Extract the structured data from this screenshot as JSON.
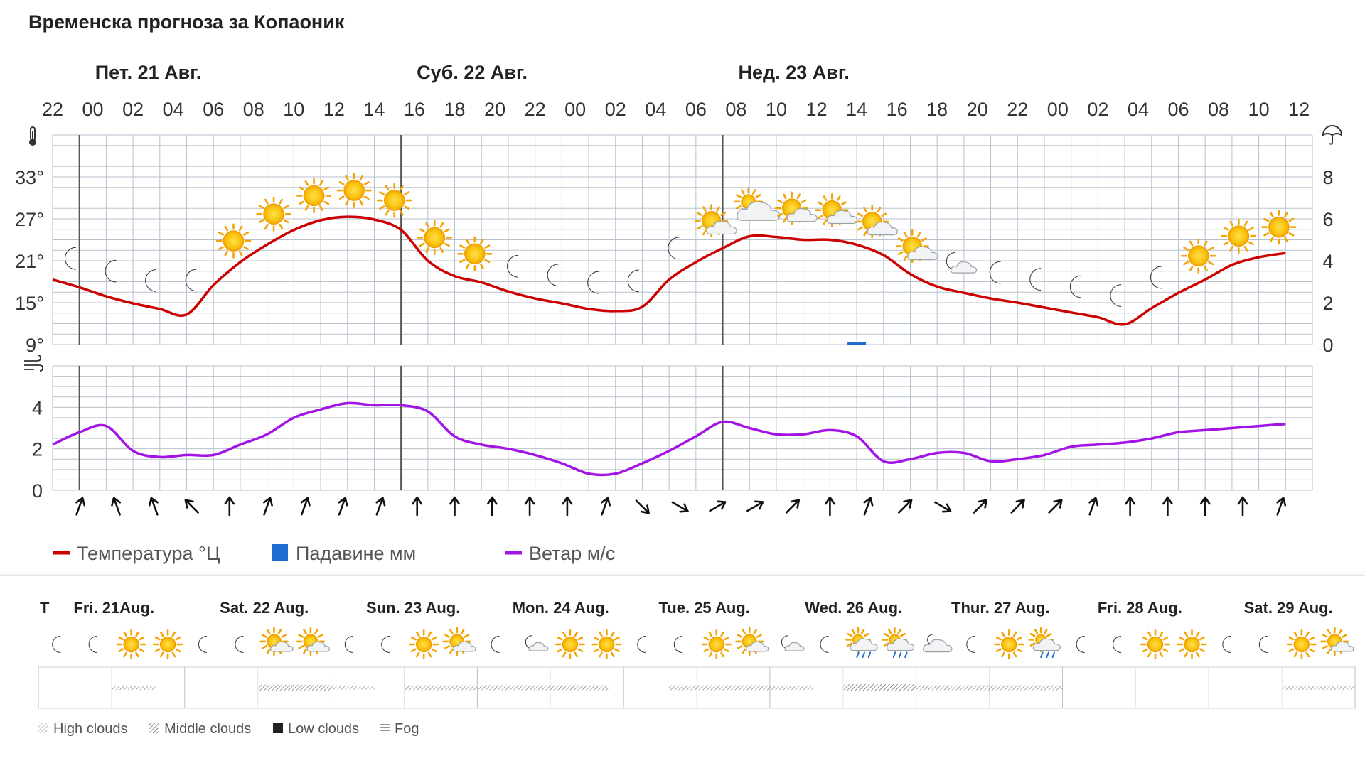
{
  "title": "Временска прогноза за Копаоник",
  "colors": {
    "temperature": "#cc0000",
    "precip": "#1e6ed2",
    "wind": "#a313e6",
    "grid": "#b8c2cc",
    "sun": "#f7b500"
  },
  "chart_data": [
    {
      "type": "line",
      "days": [
        {
          "label": "Пет. 21 Авг.",
          "start_index": 1
        },
        {
          "label": "Суб. 22 Авг.",
          "start_index": 13
        },
        {
          "label": "Нед. 23 Авг.",
          "start_index": 25
        }
      ],
      "hour_labels": [
        "22",
        "00",
        "02",
        "04",
        "06",
        "08",
        "10",
        "12",
        "14",
        "16",
        "18",
        "20",
        "22",
        "00",
        "02",
        "04",
        "06",
        "08",
        "10",
        "12",
        "14",
        "16",
        "18",
        "20",
        "22",
        "00",
        "02",
        "04",
        "06",
        "08",
        "10",
        "12"
      ],
      "temp_ticks": [
        "9°",
        "15°",
        "21°",
        "27°",
        "33°"
      ],
      "precip_ticks": [
        "0",
        "2",
        "4",
        "6",
        "8"
      ],
      "wind_ticks": [
        "0",
        "2",
        "4"
      ],
      "temp_range": [
        9,
        39
      ],
      "precip_range": [
        0,
        10
      ],
      "wind_range": [
        0,
        6
      ],
      "series": [
        {
          "name": "Температура °Ц",
          "unit": "°C",
          "values": [
            18.3,
            17.2,
            15.9,
            14.9,
            14.1,
            13.3,
            17.5,
            20.8,
            23.3,
            25.4,
            26.8,
            27.3,
            26.9,
            25.4,
            21.0,
            18.8,
            17.9,
            16.6,
            15.6,
            14.9,
            14.1,
            13.8,
            14.4,
            18.3,
            20.8,
            22.8,
            24.5,
            24.4,
            24.0,
            24.0,
            23.3,
            21.8,
            19.1,
            17.3,
            16.4,
            15.6,
            15.0,
            14.3,
            13.6,
            12.9,
            11.9,
            14.2,
            16.4,
            18.3,
            20.4,
            21.5,
            22.1
          ]
        },
        {
          "name": "Падавине мм",
          "unit": "mm",
          "values": [
            0,
            0,
            0,
            0,
            0,
            0,
            0,
            0,
            0,
            0,
            0,
            0,
            0,
            0,
            0,
            0,
            0,
            0,
            0,
            0,
            0,
            0,
            0,
            0,
            0,
            0,
            0,
            0,
            0,
            0,
            0.1,
            0,
            0,
            0,
            0,
            0,
            0,
            0,
            0,
            0,
            0,
            0,
            0,
            0,
            0,
            0,
            0
          ]
        },
        {
          "name": "Ветар м/с",
          "unit": "m/s",
          "values": [
            2.2,
            2.8,
            3.1,
            1.9,
            1.6,
            1.7,
            1.7,
            2.2,
            2.7,
            3.5,
            3.9,
            4.2,
            4.1,
            4.1,
            3.8,
            2.6,
            2.2,
            2.0,
            1.7,
            1.3,
            0.8,
            0.8,
            1.3,
            1.9,
            2.6,
            3.3,
            3.0,
            2.7,
            2.7,
            2.9,
            2.6,
            1.4,
            1.5,
            1.8,
            1.8,
            1.4,
            1.5,
            1.7,
            2.1,
            2.2,
            2.3,
            2.5,
            2.8,
            2.9,
            3.0,
            3.1,
            3.2
          ]
        }
      ],
      "weather_icons": [
        {
          "hour": "23",
          "icon": "moon-icon"
        },
        {
          "hour": "01",
          "icon": "moon-icon"
        },
        {
          "hour": "03",
          "icon": "moon-icon"
        },
        {
          "hour": "05",
          "icon": "moon-icon"
        },
        {
          "hour": "07",
          "icon": "sun-icon"
        },
        {
          "hour": "09",
          "icon": "sun-icon"
        },
        {
          "hour": "11",
          "icon": "sun-icon"
        },
        {
          "hour": "13",
          "icon": "sun-icon"
        },
        {
          "hour": "15",
          "icon": "sun-icon"
        },
        {
          "hour": "17",
          "icon": "sun-icon"
        },
        {
          "hour": "19",
          "icon": "sun-icon"
        },
        {
          "hour": "21",
          "icon": "moon-icon"
        },
        {
          "hour": "23",
          "icon": "moon-icon"
        },
        {
          "hour": "01",
          "icon": "moon-icon"
        },
        {
          "hour": "03",
          "icon": "moon-icon"
        },
        {
          "hour": "05",
          "icon": "moon-icon"
        },
        {
          "hour": "07",
          "icon": "partly-cloudy-sun-icon"
        },
        {
          "hour": "09",
          "icon": "cloudy-sun-icon"
        },
        {
          "hour": "11",
          "icon": "partly-cloudy-sun-icon"
        },
        {
          "hour": "13",
          "icon": "partly-cloudy-sun-icon"
        },
        {
          "hour": "15",
          "icon": "partly-cloudy-sun-icon"
        },
        {
          "hour": "17",
          "icon": "partly-cloudy-sun-icon"
        },
        {
          "hour": "19",
          "icon": "partly-cloudy-moon-icon"
        },
        {
          "hour": "21",
          "icon": "moon-icon"
        },
        {
          "hour": "23",
          "icon": "moon-icon"
        },
        {
          "hour": "01",
          "icon": "moon-icon"
        },
        {
          "hour": "03",
          "icon": "moon-icon"
        },
        {
          "hour": "05",
          "icon": "moon-icon"
        },
        {
          "hour": "07",
          "icon": "sun-icon"
        },
        {
          "hour": "09",
          "icon": "sun-icon"
        },
        {
          "hour": "11",
          "icon": "sun-icon"
        }
      ],
      "wind_directions_deg": [
        200,
        160,
        160,
        135,
        180,
        200,
        200,
        200,
        200,
        180,
        180,
        180,
        180,
        180,
        200,
        315,
        300,
        240,
        240,
        225,
        180,
        200,
        225,
        300,
        225,
        225,
        225,
        200,
        180,
        180,
        180,
        180,
        200
      ],
      "legend": [
        "Температура °Ц",
        "Падавине мм",
        "Ветар м/с"
      ],
      "legend_position": "bottom-left",
      "grid": true
    },
    {
      "type": "table",
      "corner_label": "T",
      "days": [
        "Fri. 21Aug.",
        "Sat. 22 Aug.",
        "Sun. 23 Aug.",
        "Mon. 24 Aug.",
        "Tue. 25 Aug.",
        "Wed. 26 Aug.",
        "Thur. 27 Aug.",
        "Fri. 28 Aug.",
        "Sat. 29 Aug."
      ],
      "icons": [
        [
          "moon-icon",
          "moon-icon",
          "sun-icon",
          "sun-icon"
        ],
        [
          "moon-icon",
          "moon-icon",
          "partly-cloudy-sun-icon",
          "partly-cloudy-sun-icon"
        ],
        [
          "moon-icon",
          "moon-icon",
          "sun-icon",
          "partly-cloudy-sun-icon"
        ],
        [
          "moon-icon",
          "partly-cloudy-moon-icon",
          "sun-icon",
          "sun-icon"
        ],
        [
          "moon-icon",
          "moon-icon",
          "sun-icon",
          "partly-cloudy-sun-icon"
        ],
        [
          "partly-cloudy-moon-icon",
          "moon-icon",
          "rain-sun-icon",
          "rain-sun-icon"
        ],
        [
          "cloudy-moon-icon",
          "moon-icon",
          "sun-icon",
          "rain-cloud-icon"
        ],
        [
          "moon-icon",
          "moon-icon",
          "sun-icon",
          "sun-icon"
        ],
        [
          "moon-icon",
          "moon-icon",
          "sun-icon",
          "partly-cloudy-sun-icon"
        ]
      ],
      "cloud_layers": [
        {
          "day": 0,
          "from": 0.5,
          "to": 0.8,
          "density": 0.5
        },
        {
          "day": 1,
          "from": 0.5,
          "to": 1.0,
          "density": 0.8
        },
        {
          "day": 2,
          "from": 0.0,
          "to": 0.3,
          "density": 0.4
        },
        {
          "day": 2,
          "from": 0.5,
          "to": 1.0,
          "density": 0.6
        },
        {
          "day": 3,
          "from": 0.0,
          "to": 0.9,
          "density": 0.6
        },
        {
          "day": 4,
          "from": 0.3,
          "to": 1.0,
          "density": 0.6
        },
        {
          "day": 5,
          "from": 0.0,
          "to": 0.3,
          "density": 0.5
        },
        {
          "day": 5,
          "from": 0.5,
          "to": 1.0,
          "density": 1.0
        },
        {
          "day": 6,
          "from": 0.0,
          "to": 1.0,
          "density": 0.6
        },
        {
          "day": 8,
          "from": 0.5,
          "to": 1.0,
          "density": 0.5
        }
      ],
      "legend": [
        "High clouds",
        "Middle clouds",
        "Low clouds",
        "Fog"
      ]
    }
  ]
}
